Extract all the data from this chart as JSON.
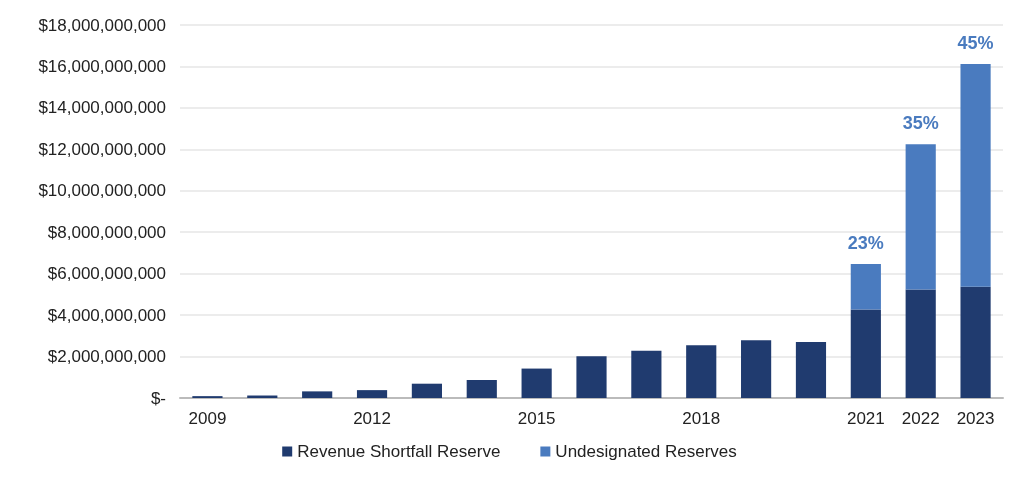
{
  "chart_data": {
    "type": "bar",
    "stacked": true,
    "categories": [
      "2009",
      null,
      null,
      "2012",
      null,
      null,
      "2015",
      null,
      null,
      "2018",
      null,
      null,
      "2021",
      "2022",
      "2023"
    ],
    "series": [
      {
        "name": "Revenue Shortfall Reserve",
        "color": "#203b6f",
        "values": [
          90000000,
          120000000,
          320000000,
          380000000,
          690000000,
          870000000,
          1420000000,
          2020000000,
          2280000000,
          2550000000,
          2790000000,
          2700000000,
          4270000000,
          5230000000,
          5370000000
        ]
      },
      {
        "name": "Undesignated Reserves",
        "color": "#4a7bbf",
        "values": [
          null,
          null,
          null,
          null,
          null,
          null,
          null,
          null,
          null,
          null,
          null,
          null,
          2200000000,
          7010000000,
          10750000000
        ]
      }
    ],
    "annotations": [
      {
        "text": "23%",
        "x": "2021",
        "y": 6470000000
      },
      {
        "text": "35%",
        "x": "2022",
        "y": 12240000000
      },
      {
        "text": "45%",
        "x": "2023",
        "y": 16120000000
      }
    ],
    "ylim": [
      0,
      18000000000
    ],
    "yticks": [
      {
        "value": 0,
        "label": "$-"
      },
      {
        "value": 2000000000,
        "label": "$2,000,000,000"
      },
      {
        "value": 4000000000,
        "label": "$4,000,000,000"
      },
      {
        "value": 6000000000,
        "label": "$6,000,000,000"
      },
      {
        "value": 8000000000,
        "label": "$8,000,000,000"
      },
      {
        "value": 10000000000,
        "label": "$10,000,000,000"
      },
      {
        "value": 12000000000,
        "label": "$12,000,000,000"
      },
      {
        "value": 14000000000,
        "label": "$14,000,000,000"
      },
      {
        "value": 16000000000,
        "label": "$16,000,000,000"
      },
      {
        "value": 18000000000,
        "label": "$18,000,000,000"
      }
    ],
    "grid": "y",
    "legend": "bottom"
  }
}
